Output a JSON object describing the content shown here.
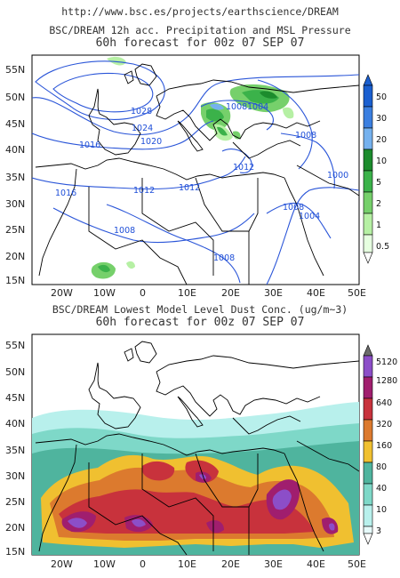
{
  "header": {
    "url": "http://www.bsc.es/projects/earthscience/DREAM"
  },
  "maps": [
    {
      "title": "BSC/DREAM 12h acc. Precipitation and MSL Pressure",
      "subtitle": "60h forecast for 00z 07 SEP 07",
      "lat_labels": [
        "55N",
        "50N",
        "45N",
        "40N",
        "35N",
        "30N",
        "25N",
        "20N",
        "15N"
      ],
      "lon_labels": [
        "20W",
        "10W",
        "0",
        "10E",
        "20E",
        "30E",
        "40E",
        "50E"
      ],
      "isobar_labels": [
        "1028",
        "1024",
        "1020",
        "1016",
        "1016",
        "1012",
        "1012",
        "1012",
        "1008",
        "1008",
        "1008",
        "1008",
        "1004",
        "1004",
        "1000",
        "1008",
        "1004"
      ],
      "colorbar": {
        "labels": [
          "50",
          "30",
          "20",
          "10",
          "5",
          "2",
          "1",
          "0.5"
        ],
        "colors": [
          "#1a5fd0",
          "#3b7fe0",
          "#75b1ee",
          "#1c8c2d",
          "#3bb24a",
          "#76d06b",
          "#b6f0a4",
          "#e6ffe0"
        ]
      }
    },
    {
      "title": "BSC/DREAM Lowest Model Level Dust Conc. (ug/m~3)",
      "subtitle": "60h forecast for 00z 07 SEP 07",
      "lat_labels": [
        "55N",
        "50N",
        "45N",
        "40N",
        "35N",
        "30N",
        "25N",
        "20N",
        "15N"
      ],
      "lon_labels": [
        "20W",
        "10W",
        "0",
        "10E",
        "20E",
        "30E",
        "40E",
        "50E"
      ],
      "colorbar": {
        "labels": [
          "5120",
          "1280",
          "640",
          "320",
          "160",
          "80",
          "40",
          "10",
          "3"
        ],
        "colors": [
          "#6b6b6b",
          "#8c4ec8",
          "#a01e6e",
          "#c8323c",
          "#dc7a2e",
          "#f0c030",
          "#4fb49e",
          "#7ed8c8",
          "#b8f0ec",
          "#e6fafa"
        ]
      }
    }
  ]
}
